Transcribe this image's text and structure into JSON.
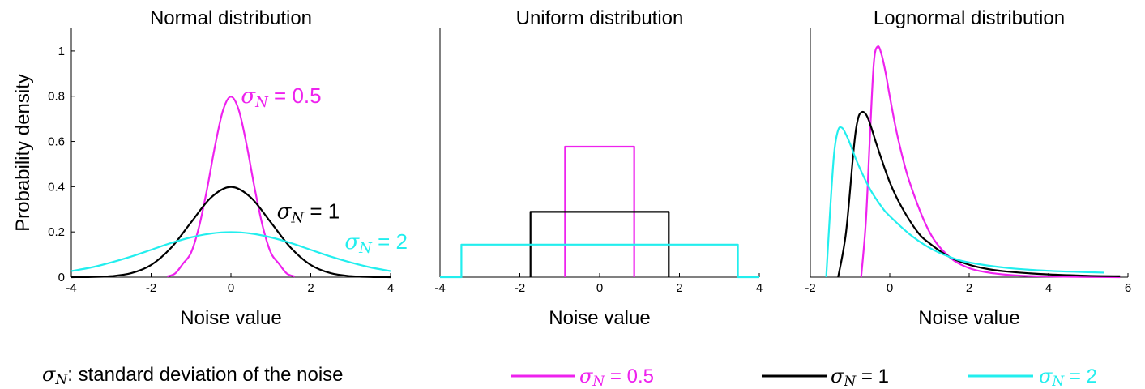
{
  "colors": {
    "magenta": "#ee22ee",
    "black": "#000000",
    "cyan": "#22eeee"
  },
  "note": {
    "symbol": "σ",
    "sub": "N",
    "text": ": standard deviation of the noise"
  },
  "legend": [
    {
      "symbol": "σ",
      "sub": "N",
      "label": " = 0.5",
      "color": "#ee22ee"
    },
    {
      "symbol": "σ",
      "sub": "N",
      "label": " = 1",
      "color": "#000000"
    },
    {
      "symbol": "σ",
      "sub": "N",
      "label": " = 2",
      "color": "#22eeee"
    }
  ],
  "chart_data": [
    {
      "type": "line",
      "title": "Normal distribution",
      "xlabel": "Noise value",
      "ylabel": "Probability density",
      "xlim": [
        -4,
        4
      ],
      "ylim": [
        0,
        1.1
      ],
      "xticks": [
        -4,
        -2,
        0,
        2,
        4
      ],
      "xtick_labels": [
        "-4",
        "-2",
        "0",
        "2",
        "4"
      ],
      "yticks": [
        0,
        0.2,
        0.4,
        0.6,
        0.8,
        1
      ],
      "ytick_labels": [
        "0",
        "0.2",
        "0.4",
        "0.6",
        "0.8",
        "1"
      ],
      "grid": false,
      "series": [
        {
          "name": "σN = 0.5",
          "color": "#ee22ee",
          "x": [
            -1.6,
            -1.4,
            -1.2,
            -1.0,
            -0.8,
            -0.6,
            -0.4,
            -0.2,
            0,
            0.2,
            0.4,
            0.6,
            0.8,
            1.0,
            1.2,
            1.4,
            1.6
          ],
          "y": [
            0.003,
            0.016,
            0.06,
            0.108,
            0.222,
            0.388,
            0.579,
            0.737,
            0.798,
            0.737,
            0.579,
            0.388,
            0.222,
            0.108,
            0.06,
            0.016,
            0.003
          ]
        },
        {
          "name": "σN = 1",
          "color": "#000000",
          "x": [
            -4,
            -3.5,
            -3,
            -2.5,
            -2,
            -1.5,
            -1,
            -0.5,
            0,
            0.5,
            1,
            1.5,
            2,
            2.5,
            3,
            3.5,
            4
          ],
          "y": [
            0.0001,
            0.0009,
            0.0044,
            0.0175,
            0.054,
            0.13,
            0.242,
            0.352,
            0.399,
            0.352,
            0.242,
            0.13,
            0.054,
            0.0175,
            0.0044,
            0.0009,
            0.0001
          ]
        },
        {
          "name": "σN = 2",
          "color": "#22eeee",
          "x": [
            -4,
            -3.5,
            -3,
            -2.5,
            -2,
            -1.5,
            -1,
            -0.5,
            0,
            0.5,
            1,
            1.5,
            2,
            2.5,
            3,
            3.5,
            4
          ],
          "y": [
            0.027,
            0.043,
            0.065,
            0.091,
            0.121,
            0.151,
            0.176,
            0.193,
            0.199,
            0.193,
            0.176,
            0.151,
            0.121,
            0.091,
            0.065,
            0.043,
            0.027
          ]
        }
      ],
      "annotations": [
        {
          "sub": "N",
          "label": " = 0.5",
          "color": "#ee22ee",
          "x": 0.25,
          "y": 0.77
        },
        {
          "sub": "N",
          "label": " = 1",
          "color": "#000000",
          "x": 1.15,
          "y": 0.26
        },
        {
          "sub": "N",
          "label": " = 2",
          "color": "#22eeee",
          "x": 2.85,
          "y": 0.125
        }
      ]
    },
    {
      "type": "line",
      "title": "Uniform distribution",
      "xlabel": "Noise value",
      "xlim": [
        -4,
        4
      ],
      "ylim": [
        0,
        1.1
      ],
      "xticks": [
        -4,
        -2,
        0,
        2,
        4
      ],
      "xtick_labels": [
        "-4",
        "-2",
        "0",
        "2",
        "4"
      ],
      "grid": false,
      "series": [
        {
          "name": "σN = 0.5",
          "color": "#ee22ee",
          "x": [
            -0.866,
            -0.866,
            0.866,
            0.866
          ],
          "y": [
            0,
            0.577,
            0.577,
            0
          ]
        },
        {
          "name": "σN = 1",
          "color": "#000000",
          "x": [
            -1.732,
            -1.732,
            1.732,
            1.732
          ],
          "y": [
            0,
            0.289,
            0.289,
            0
          ]
        },
        {
          "name": "σN = 2",
          "color": "#22eeee",
          "x": [
            -4,
            -3.464,
            -3.464,
            3.464,
            3.464,
            4
          ],
          "y": [
            0,
            0,
            0.144,
            0.144,
            0,
            0
          ]
        }
      ]
    },
    {
      "type": "line",
      "title": "Lognormal distribution",
      "xlabel": "Noise value",
      "xlim": [
        -2,
        6
      ],
      "ylim": [
        0,
        1.1
      ],
      "xticks": [
        -2,
        0,
        2,
        4,
        6
      ],
      "xtick_labels": [
        "-2",
        "0",
        "2",
        "4",
        "6"
      ],
      "grid": false,
      "series": [
        {
          "name": "σN = 0.5",
          "color": "#ee22ee",
          "x": [
            -0.72,
            -0.6,
            -0.5,
            -0.4,
            -0.3,
            -0.2,
            -0.1,
            0,
            0.2,
            0.5,
            1.0,
            1.5,
            2.0,
            2.5,
            3.0,
            3.5,
            4.0,
            5.0,
            5.8
          ],
          "y": [
            0,
            0.25,
            0.62,
            0.95,
            1.02,
            0.98,
            0.9,
            0.8,
            0.62,
            0.42,
            0.2,
            0.09,
            0.04,
            0.02,
            0.01,
            0.005,
            0.003,
            0.001,
            0
          ]
        },
        {
          "name": "σN = 1",
          "color": "#000000",
          "x": [
            -1.3,
            -1.1,
            -0.9,
            -0.8,
            -0.7,
            -0.6,
            -0.5,
            -0.3,
            0,
            0.3,
            0.7,
            1.0,
            1.5,
            2.0,
            2.5,
            3.0,
            4.0,
            5.0,
            5.8
          ],
          "y": [
            0,
            0.2,
            0.58,
            0.7,
            0.73,
            0.72,
            0.68,
            0.57,
            0.42,
            0.31,
            0.2,
            0.15,
            0.09,
            0.055,
            0.035,
            0.024,
            0.012,
            0.006,
            0.004
          ]
        },
        {
          "name": "σN = 2",
          "color": "#22eeee",
          "x": [
            -1.6,
            -1.5,
            -1.4,
            -1.3,
            -1.2,
            -1.1,
            -1.0,
            -0.8,
            -0.5,
            -0.2,
            0,
            0.5,
            1.0,
            1.5,
            2.0,
            3.0,
            4.0,
            5.0,
            5.4
          ],
          "y": [
            0,
            0.3,
            0.55,
            0.65,
            0.66,
            0.63,
            0.59,
            0.5,
            0.39,
            0.31,
            0.27,
            0.19,
            0.13,
            0.09,
            0.065,
            0.04,
            0.028,
            0.022,
            0.02
          ]
        }
      ]
    }
  ]
}
